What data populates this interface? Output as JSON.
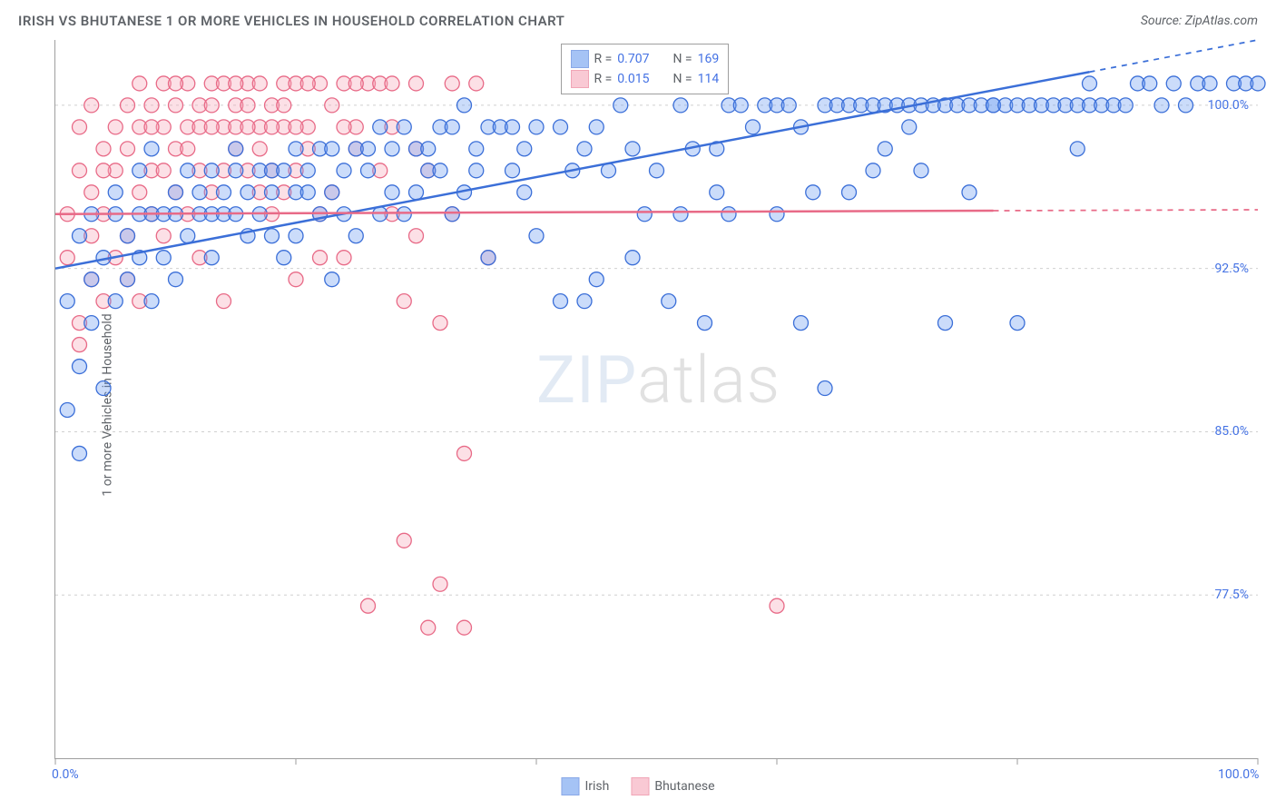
{
  "title": "IRISH VS BHUTANESE 1 OR MORE VEHICLES IN HOUSEHOLD CORRELATION CHART",
  "source_label": "Source: ZipAtlas.com",
  "ylabel": "1 or more Vehicles in Household",
  "watermark": {
    "part1": "ZIP",
    "part2": "atlas"
  },
  "chart": {
    "type": "scatter",
    "background_color": "#ffffff",
    "grid_color": "#d0d0d0",
    "grid_dash": "3,4",
    "axis_color": "#9e9e9e",
    "text_color": "#5f6368",
    "value_color": "#4472e4",
    "title_fontsize": 15,
    "label_fontsize": 14,
    "xlim": [
      0,
      100
    ],
    "ylim": [
      70,
      103
    ],
    "x_ticks": [
      0,
      20,
      40,
      60,
      80,
      100
    ],
    "x_tick_labels": [
      "0.0%",
      "",
      "",
      "",
      "",
      "100.0%"
    ],
    "y_ticks": [
      77.5,
      85.0,
      92.5,
      100.0
    ],
    "y_tick_labels": [
      "77.5%",
      "85.0%",
      "92.5%",
      "100.0%"
    ],
    "marker": {
      "shape": "circle",
      "radius": 8,
      "stroke_width": 1.3,
      "fill_opacity": 0.35
    },
    "series": [
      {
        "name": "Irish",
        "stroke": "#3b6fd8",
        "fill": "#6a9cf0",
        "R": 0.707,
        "N": 169,
        "trend": {
          "x0": 0,
          "y0": 92.5,
          "x1": 100,
          "y1": 103,
          "x_solid_end": 86,
          "solid_width": 2.5
        },
        "points": [
          [
            1,
            91
          ],
          [
            1,
            86
          ],
          [
            2,
            84
          ],
          [
            2,
            88
          ],
          [
            2,
            94
          ],
          [
            3,
            95
          ],
          [
            3,
            92
          ],
          [
            3,
            90
          ],
          [
            4,
            93
          ],
          [
            4,
            87
          ],
          [
            5,
            95
          ],
          [
            5,
            96
          ],
          [
            5,
            91
          ],
          [
            6,
            94
          ],
          [
            6,
            92
          ],
          [
            7,
            95
          ],
          [
            7,
            97
          ],
          [
            7,
            93
          ],
          [
            8,
            95
          ],
          [
            8,
            98
          ],
          [
            8,
            91
          ],
          [
            9,
            95
          ],
          [
            9,
            93
          ],
          [
            10,
            96
          ],
          [
            10,
            95
          ],
          [
            10,
            92
          ],
          [
            11,
            97
          ],
          [
            11,
            94
          ],
          [
            12,
            96
          ],
          [
            12,
            95
          ],
          [
            13,
            97
          ],
          [
            13,
            95
          ],
          [
            13,
            93
          ],
          [
            14,
            96
          ],
          [
            14,
            95
          ],
          [
            15,
            97
          ],
          [
            15,
            95
          ],
          [
            15,
            98
          ],
          [
            16,
            96
          ],
          [
            16,
            94
          ],
          [
            17,
            97
          ],
          [
            17,
            95
          ],
          [
            18,
            97
          ],
          [
            18,
            94
          ],
          [
            18,
            96
          ],
          [
            19,
            97
          ],
          [
            19,
            93
          ],
          [
            20,
            98
          ],
          [
            20,
            96
          ],
          [
            20,
            94
          ],
          [
            21,
            97
          ],
          [
            21,
            96
          ],
          [
            22,
            98
          ],
          [
            22,
            95
          ],
          [
            23,
            98
          ],
          [
            23,
            96
          ],
          [
            23,
            92
          ],
          [
            24,
            97
          ],
          [
            24,
            95
          ],
          [
            25,
            98
          ],
          [
            25,
            94
          ],
          [
            26,
            98
          ],
          [
            26,
            97
          ],
          [
            27,
            99
          ],
          [
            27,
            95
          ],
          [
            28,
            98
          ],
          [
            28,
            96
          ],
          [
            29,
            99
          ],
          [
            29,
            95
          ],
          [
            30,
            98
          ],
          [
            30,
            96
          ],
          [
            31,
            98
          ],
          [
            31,
            97
          ],
          [
            32,
            99
          ],
          [
            32,
            97
          ],
          [
            33,
            99
          ],
          [
            33,
            95
          ],
          [
            34,
            100
          ],
          [
            34,
            96
          ],
          [
            35,
            98
          ],
          [
            35,
            97
          ],
          [
            36,
            99
          ],
          [
            36,
            93
          ],
          [
            37,
            99
          ],
          [
            38,
            97
          ],
          [
            38,
            99
          ],
          [
            39,
            98
          ],
          [
            40,
            99
          ],
          [
            40,
            94
          ],
          [
            42,
            99
          ],
          [
            42,
            91
          ],
          [
            43,
            97
          ],
          [
            44,
            98
          ],
          [
            45,
            99
          ],
          [
            45,
            92
          ],
          [
            46,
            97
          ],
          [
            47,
            100
          ],
          [
            48,
            93
          ],
          [
            48,
            98
          ],
          [
            49,
            95
          ],
          [
            50,
            97
          ],
          [
            51,
            91
          ],
          [
            52,
            95
          ],
          [
            52,
            100
          ],
          [
            53,
            98
          ],
          [
            54,
            90
          ],
          [
            55,
            96
          ],
          [
            56,
            95
          ],
          [
            56,
            100
          ],
          [
            57,
            100
          ],
          [
            58,
            99
          ],
          [
            59,
            100
          ],
          [
            60,
            100
          ],
          [
            60,
            95
          ],
          [
            61,
            100
          ],
          [
            62,
            99
          ],
          [
            62,
            90
          ],
          [
            63,
            96
          ],
          [
            64,
            100
          ],
          [
            64,
            87
          ],
          [
            65,
            100
          ],
          [
            66,
            100
          ],
          [
            66,
            96
          ],
          [
            67,
            100
          ],
          [
            68,
            100
          ],
          [
            69,
            98
          ],
          [
            69,
            100
          ],
          [
            70,
            100
          ],
          [
            71,
            99
          ],
          [
            71,
            100
          ],
          [
            72,
            100
          ],
          [
            72,
            97
          ],
          [
            73,
            100
          ],
          [
            74,
            100
          ],
          [
            74,
            90
          ],
          [
            75,
            100
          ],
          [
            76,
            100
          ],
          [
            76,
            96
          ],
          [
            77,
            100
          ],
          [
            78,
            100
          ],
          [
            78,
            100
          ],
          [
            79,
            100
          ],
          [
            80,
            100
          ],
          [
            80,
            90
          ],
          [
            81,
            100
          ],
          [
            82,
            100
          ],
          [
            83,
            100
          ],
          [
            84,
            100
          ],
          [
            85,
            100
          ],
          [
            86,
            100
          ],
          [
            86,
            101
          ],
          [
            87,
            100
          ],
          [
            88,
            100
          ],
          [
            89,
            100
          ],
          [
            90,
            101
          ],
          [
            91,
            101
          ],
          [
            92,
            100
          ],
          [
            93,
            101
          ],
          [
            94,
            100
          ],
          [
            95,
            101
          ],
          [
            96,
            101
          ],
          [
            98,
            101
          ],
          [
            99,
            101
          ],
          [
            100,
            101
          ],
          [
            85,
            98
          ],
          [
            68,
            97
          ],
          [
            55,
            98
          ],
          [
            44,
            91
          ],
          [
            39,
            96
          ]
        ]
      },
      {
        "name": "Bhutanese",
        "stroke": "#e86a87",
        "fill": "#f6a6b8",
        "R": 0.015,
        "N": 114,
        "trend": {
          "x0": 0,
          "y0": 95.0,
          "x1": 100,
          "y1": 95.2,
          "x_solid_end": 78,
          "solid_width": 2.5
        },
        "points": [
          [
            1,
            93
          ],
          [
            1,
            95
          ],
          [
            2,
            97
          ],
          [
            2,
            90
          ],
          [
            2,
            89
          ],
          [
            3,
            94
          ],
          [
            3,
            96
          ],
          [
            3,
            92
          ],
          [
            4,
            98
          ],
          [
            4,
            95
          ],
          [
            4,
            91
          ],
          [
            5,
            97
          ],
          [
            5,
            99
          ],
          [
            5,
            93
          ],
          [
            6,
            98
          ],
          [
            6,
            100
          ],
          [
            6,
            94
          ],
          [
            7,
            96
          ],
          [
            7,
            99
          ],
          [
            7,
            91
          ],
          [
            8,
            100
          ],
          [
            8,
            97
          ],
          [
            8,
            95
          ],
          [
            9,
            99
          ],
          [
            9,
            101
          ],
          [
            9,
            94
          ],
          [
            10,
            98
          ],
          [
            10,
            100
          ],
          [
            10,
            96
          ],
          [
            11,
            99
          ],
          [
            11,
            101
          ],
          [
            11,
            95
          ],
          [
            12,
            100
          ],
          [
            12,
            97
          ],
          [
            12,
            99
          ],
          [
            13,
            101
          ],
          [
            13,
            100
          ],
          [
            13,
            96
          ],
          [
            14,
            99
          ],
          [
            14,
            97
          ],
          [
            14,
            101
          ],
          [
            15,
            100
          ],
          [
            15,
            98
          ],
          [
            15,
            99
          ],
          [
            16,
            101
          ],
          [
            16,
            97
          ],
          [
            16,
            100
          ],
          [
            17,
            98
          ],
          [
            17,
            99
          ],
          [
            17,
            101
          ],
          [
            18,
            100
          ],
          [
            18,
            95
          ],
          [
            18,
            97
          ],
          [
            19,
            101
          ],
          [
            19,
            96
          ],
          [
            19,
            99
          ],
          [
            20,
            101
          ],
          [
            20,
            97
          ],
          [
            20,
            92
          ],
          [
            21,
            99
          ],
          [
            21,
            98
          ],
          [
            22,
            101
          ],
          [
            22,
            95
          ],
          [
            23,
            100
          ],
          [
            23,
            96
          ],
          [
            24,
            101
          ],
          [
            24,
            93
          ],
          [
            25,
            98
          ],
          [
            25,
            99
          ],
          [
            26,
            101
          ],
          [
            26,
            77
          ],
          [
            27,
            97
          ],
          [
            27,
            101
          ],
          [
            28,
            95
          ],
          [
            28,
            99
          ],
          [
            29,
            91
          ],
          [
            29,
            80
          ],
          [
            30,
            101
          ],
          [
            30,
            94
          ],
          [
            31,
            76
          ],
          [
            31,
            97
          ],
          [
            32,
            90
          ],
          [
            32,
            78
          ],
          [
            33,
            101
          ],
          [
            33,
            95
          ],
          [
            34,
            84
          ],
          [
            34,
            76
          ],
          [
            35,
            101
          ],
          [
            36,
            93
          ],
          [
            28,
            101
          ],
          [
            22,
            93
          ],
          [
            14,
            91
          ],
          [
            9,
            97
          ],
          [
            6,
            92
          ],
          [
            4,
            97
          ],
          [
            3,
            100
          ],
          [
            2,
            99
          ],
          [
            7,
            101
          ],
          [
            15,
            101
          ],
          [
            18,
            99
          ],
          [
            25,
            101
          ],
          [
            30,
            98
          ],
          [
            12,
            93
          ],
          [
            17,
            96
          ],
          [
            20,
            99
          ],
          [
            24,
            99
          ],
          [
            11,
            98
          ],
          [
            13,
            99
          ],
          [
            16,
            99
          ],
          [
            19,
            100
          ],
          [
            21,
            101
          ],
          [
            10,
            101
          ],
          [
            8,
            99
          ],
          [
            60,
            77
          ]
        ]
      }
    ],
    "legend_top": {
      "columns": [
        "R",
        "N"
      ]
    },
    "legend_bottom": [
      "Irish",
      "Bhutanese"
    ]
  }
}
